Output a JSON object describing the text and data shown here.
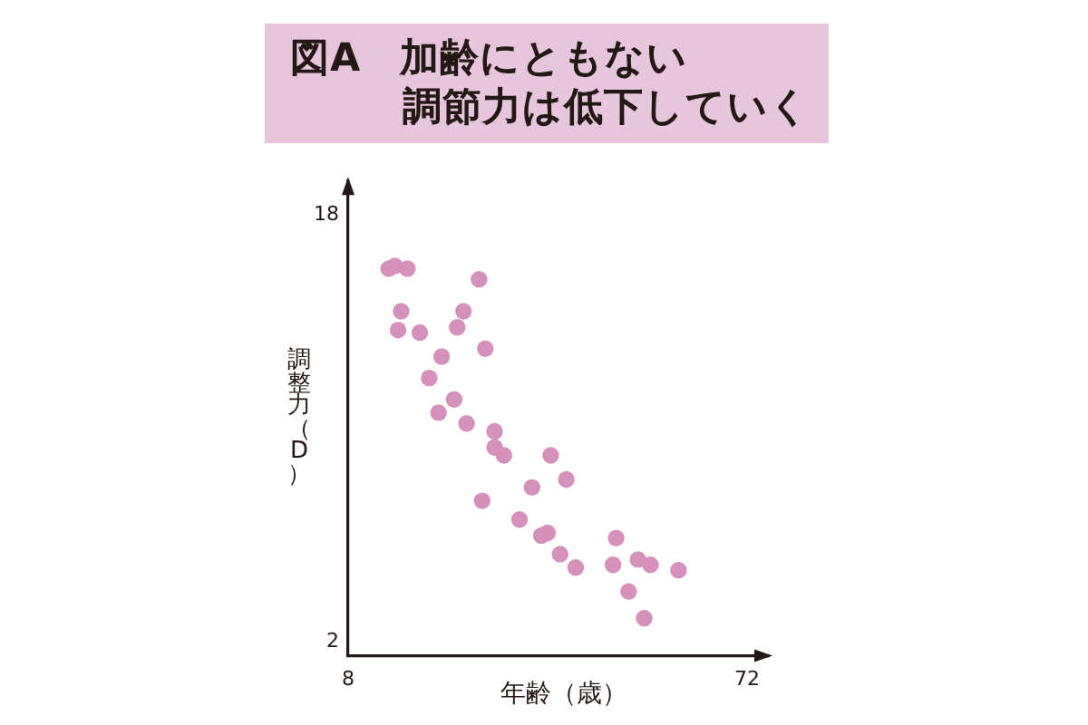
{
  "chart_data": {
    "type": "scatter",
    "title": "図A　加齢にともない調節力は低下していく",
    "xlabel": "年齢（歳）",
    "ylabel": "調整力（D）",
    "x": [
      14.5,
      15.5,
      17.5,
      29,
      16.5,
      26.5,
      16,
      19.5,
      25.5,
      30,
      23,
      21,
      25,
      22.5,
      27,
      31.5,
      31.5,
      33,
      40.5,
      43,
      37.5,
      29.5,
      35.5,
      39,
      40,
      42,
      44.5,
      51,
      50.5,
      54.5,
      56.5,
      61,
      53,
      55.5
    ],
    "values": [
      16.0,
      16.1,
      16.0,
      15.6,
      14.4,
      14.4,
      13.7,
      13.6,
      13.8,
      13.0,
      12.7,
      11.9,
      11.1,
      10.6,
      10.2,
      9.9,
      9.3,
      9.0,
      9.0,
      8.1,
      7.8,
      7.3,
      6.6,
      6.0,
      6.1,
      5.3,
      4.8,
      5.9,
      4.9,
      5.1,
      4.9,
      4.7,
      3.9,
      2.9
    ],
    "color": "#d590bb",
    "marker": "circle",
    "xlim": [
      8,
      75.5
    ],
    "ylim": [
      1.5,
      19.3
    ],
    "xticks": [
      8,
      72
    ],
    "yticks": [
      2,
      18
    ]
  }
}
